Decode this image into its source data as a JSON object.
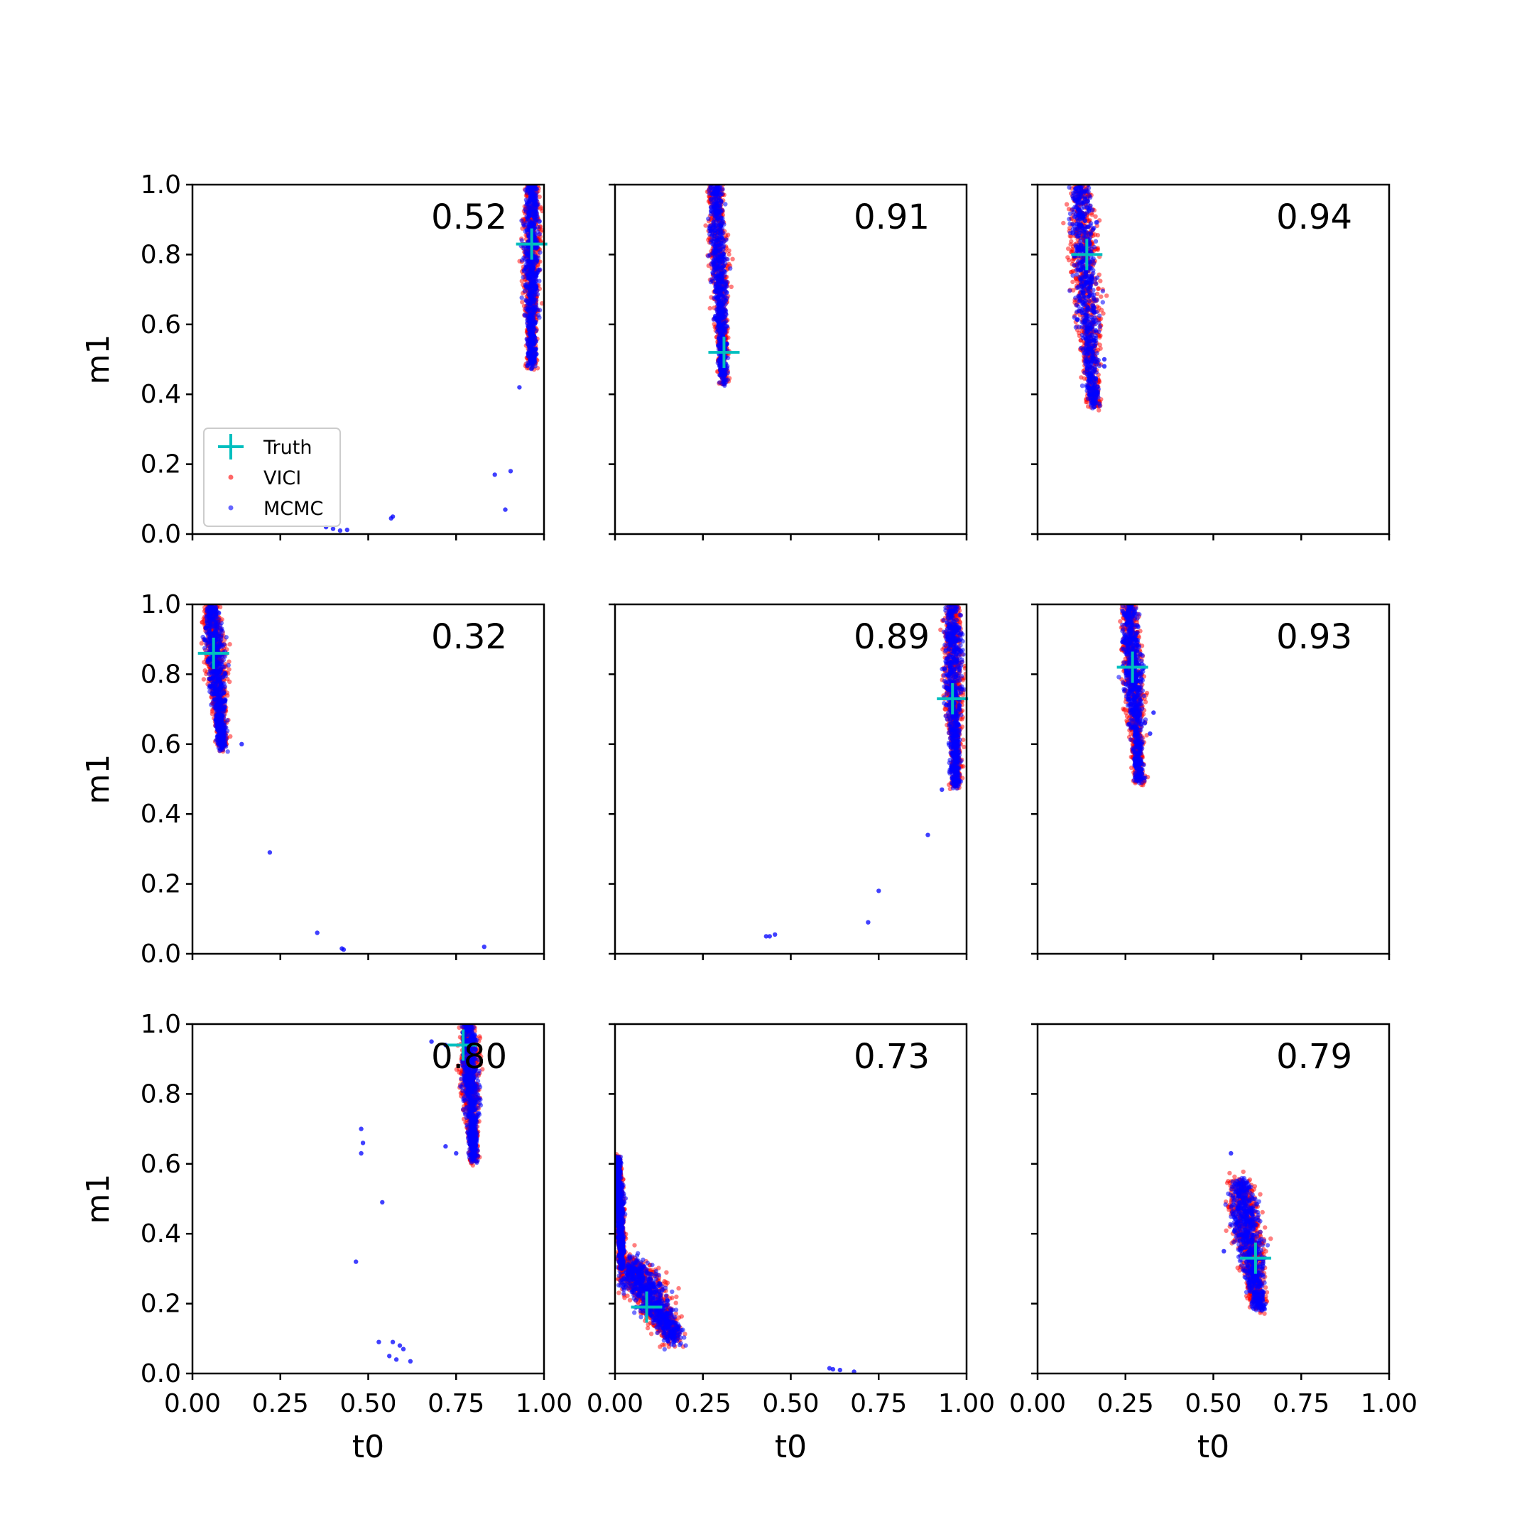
{
  "figure": {
    "xlabel": "t0",
    "ylabel": "m1",
    "xlim": [
      0,
      1
    ],
    "ylim": [
      0,
      1
    ],
    "xticks": [
      "0.00",
      "0.25",
      "0.50",
      "0.75",
      "1.00"
    ],
    "yticks": [
      "0.0",
      "0.2",
      "0.4",
      "0.6",
      "0.8",
      "1.0"
    ],
    "legend": {
      "placement": "lower-left of first panel",
      "entries": [
        {
          "label": "Truth",
          "marker": "plus",
          "color": "#00bfbf"
        },
        {
          "label": "VICI",
          "marker": "dot",
          "color": "#ff0000"
        },
        {
          "label": "MCMC",
          "marker": "dot",
          "color": "#0000ff"
        }
      ]
    },
    "colors": {
      "truth": "#00bfbf",
      "vici": "#ff0000",
      "mcmc": "#0000ff"
    }
  },
  "chart_data": [
    {
      "type": "scatter",
      "score": "0.52",
      "truth": [
        0.965,
        0.83
      ],
      "clusters": [
        {
          "from": [
            0.965,
            1.0
          ],
          "to": [
            0.965,
            0.48
          ],
          "width": 0.035
        }
      ],
      "outliers": [
        [
          0.93,
          0.42
        ],
        [
          0.905,
          0.18
        ],
        [
          0.86,
          0.17
        ],
        [
          0.89,
          0.07
        ],
        [
          0.57,
          0.05
        ],
        [
          0.565,
          0.045
        ],
        [
          0.4,
          0.015
        ],
        [
          0.42,
          0.01
        ],
        [
          0.44,
          0.012
        ],
        [
          0.38,
          0.02
        ]
      ]
    },
    {
      "type": "scatter",
      "score": "0.91",
      "truth": [
        0.31,
        0.52
      ],
      "clusters": [
        {
          "from": [
            0.285,
            1.0
          ],
          "to": [
            0.31,
            0.43
          ],
          "width": 0.035
        }
      ],
      "outliers": []
    },
    {
      "type": "scatter",
      "score": "0.94",
      "truth": [
        0.14,
        0.8
      ],
      "clusters": [
        {
          "from": [
            0.12,
            1.0
          ],
          "to": [
            0.16,
            0.37
          ],
          "width": 0.055
        }
      ],
      "outliers": [
        [
          0.19,
          0.48
        ],
        [
          0.19,
          0.5
        ]
      ]
    },
    {
      "type": "scatter",
      "score": "0.32",
      "truth": [
        0.06,
        0.86
      ],
      "clusters": [
        {
          "from": [
            0.055,
            1.0
          ],
          "to": [
            0.085,
            0.59
          ],
          "width": 0.04
        }
      ],
      "outliers": [
        [
          0.14,
          0.6
        ],
        [
          0.22,
          0.29
        ],
        [
          0.355,
          0.06
        ],
        [
          0.425,
          0.015
        ],
        [
          0.43,
          0.012
        ],
        [
          0.83,
          0.02
        ]
      ]
    },
    {
      "type": "scatter",
      "score": "0.89",
      "truth": [
        0.96,
        0.73
      ],
      "clusters": [
        {
          "from": [
            0.96,
            1.0
          ],
          "to": [
            0.97,
            0.48
          ],
          "width": 0.04
        }
      ],
      "outliers": [
        [
          0.93,
          0.47
        ],
        [
          0.89,
          0.34
        ],
        [
          0.75,
          0.18
        ],
        [
          0.72,
          0.09
        ],
        [
          0.44,
          0.05
        ],
        [
          0.455,
          0.055
        ],
        [
          0.43,
          0.05
        ]
      ]
    },
    {
      "type": "scatter",
      "score": "0.93",
      "truth": [
        0.27,
        0.82
      ],
      "clusters": [
        {
          "from": [
            0.26,
            1.0
          ],
          "to": [
            0.29,
            0.49
          ],
          "width": 0.04
        }
      ],
      "outliers": [
        [
          0.33,
          0.69
        ],
        [
          0.32,
          0.63
        ],
        [
          0.305,
          0.66
        ]
      ]
    },
    {
      "type": "scatter",
      "score": "0.80",
      "truth": [
        0.77,
        0.94
      ],
      "clusters": [
        {
          "from": [
            0.785,
            1.0
          ],
          "to": [
            0.8,
            0.61
          ],
          "width": 0.035
        }
      ],
      "outliers": [
        [
          0.68,
          0.95
        ],
        [
          0.72,
          0.94
        ],
        [
          0.48,
          0.7
        ],
        [
          0.485,
          0.66
        ],
        [
          0.48,
          0.63
        ],
        [
          0.54,
          0.49
        ],
        [
          0.465,
          0.32
        ],
        [
          0.75,
          0.63
        ],
        [
          0.72,
          0.65
        ],
        [
          0.53,
          0.09
        ],
        [
          0.57,
          0.09
        ],
        [
          0.59,
          0.08
        ],
        [
          0.56,
          0.05
        ],
        [
          0.58,
          0.04
        ],
        [
          0.62,
          0.035
        ],
        [
          0.6,
          0.07
        ]
      ]
    },
    {
      "type": "scatter",
      "score": "0.73",
      "truth": [
        0.09,
        0.19
      ],
      "clusters": [
        {
          "from": [
            0.04,
            0.32
          ],
          "to": [
            0.17,
            0.1
          ],
          "width": 0.08
        },
        {
          "from": [
            0.005,
            0.62
          ],
          "to": [
            0.02,
            0.3
          ],
          "width": 0.02
        }
      ],
      "outliers": [
        [
          0.61,
          0.015
        ],
        [
          0.64,
          0.01
        ],
        [
          0.68,
          0.005
        ],
        [
          0.62,
          0.012
        ]
      ]
    },
    {
      "type": "scatter",
      "score": "0.79",
      "truth": [
        0.62,
        0.33
      ],
      "clusters": [
        {
          "from": [
            0.575,
            0.55
          ],
          "to": [
            0.63,
            0.19
          ],
          "width": 0.06
        }
      ],
      "outliers": [
        [
          0.55,
          0.63
        ],
        [
          0.53,
          0.35
        ]
      ]
    }
  ]
}
